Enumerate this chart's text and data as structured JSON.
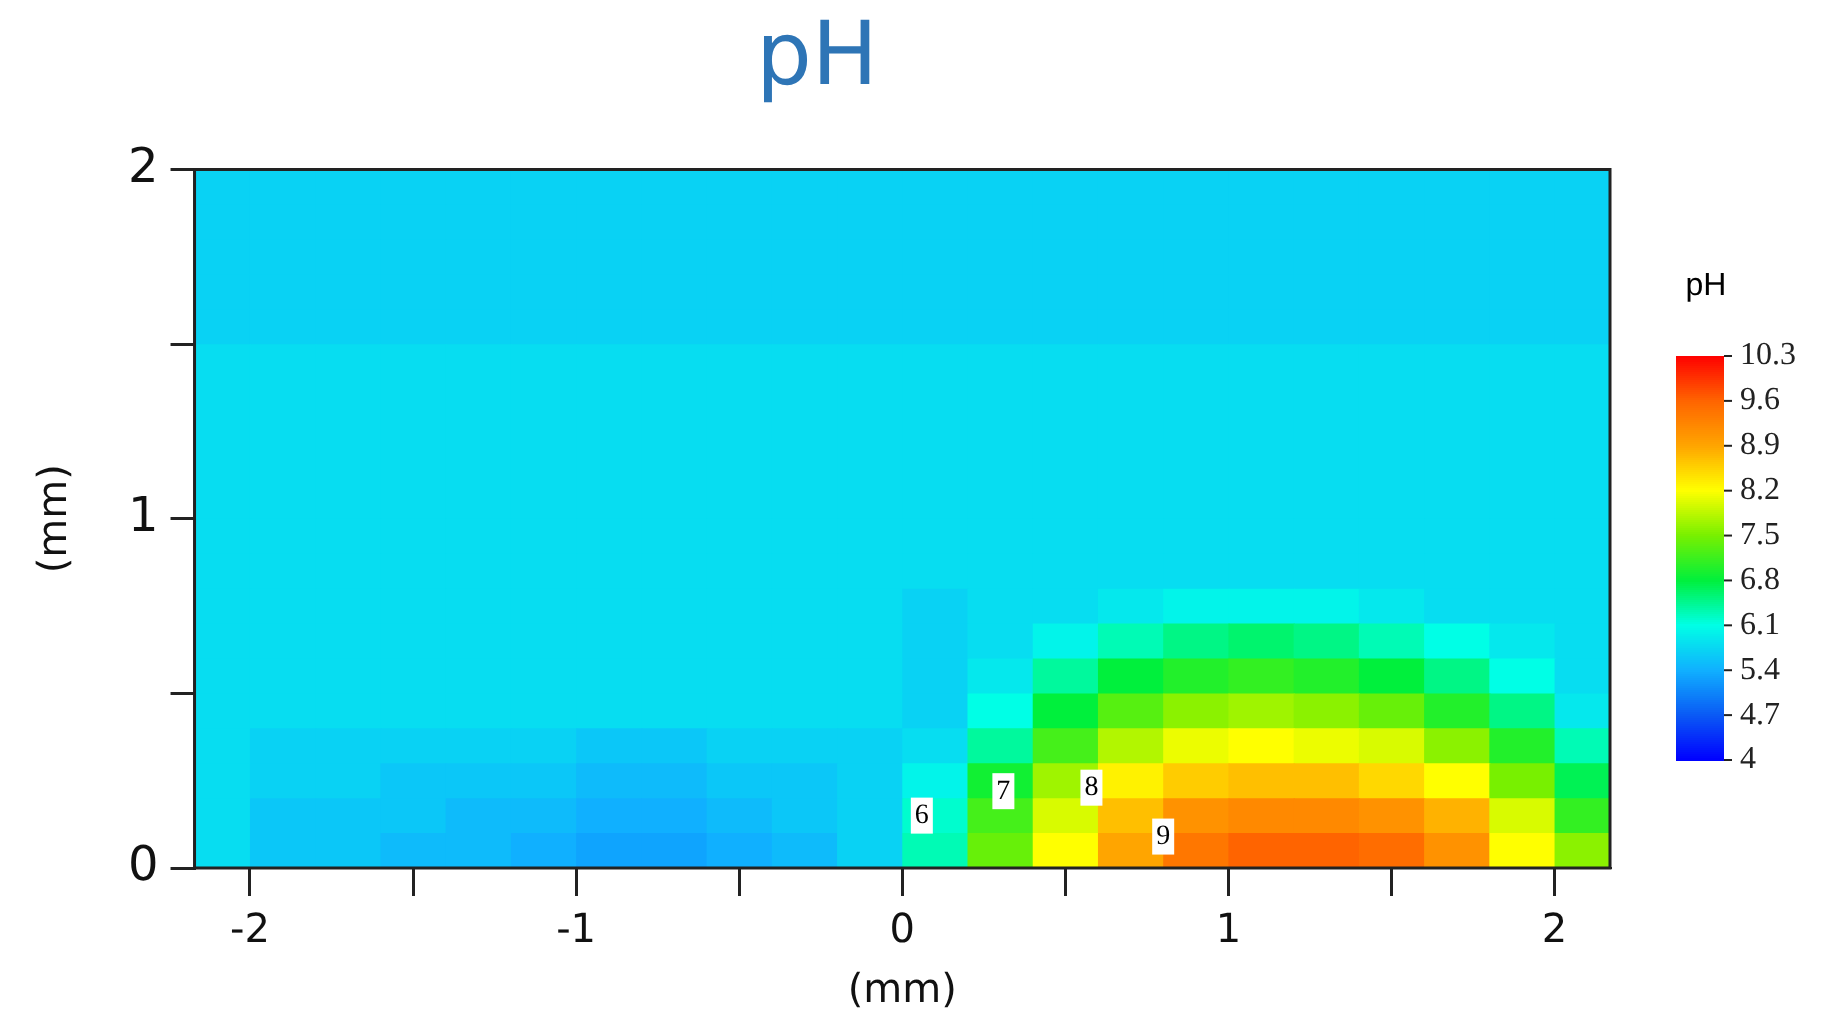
{
  "chart_data": {
    "type": "heatmap",
    "title": "pH",
    "xlabel": "(mm)",
    "ylabel": "(mm)",
    "clabel": "pH",
    "x": [
      -2.1,
      -1.9,
      -1.7,
      -1.5,
      -1.3,
      -1.1,
      -0.9,
      -0.7,
      -0.5,
      -0.3,
      -0.1,
      0.1,
      0.3,
      0.5,
      0.7,
      0.9,
      1.1,
      1.3,
      1.5,
      1.7,
      1.9,
      2.1
    ],
    "y": [
      1.95,
      1.85,
      1.75,
      1.65,
      1.55,
      1.45,
      1.35,
      1.25,
      1.15,
      1.05,
      0.95,
      0.85,
      0.75,
      0.65,
      0.55,
      0.45,
      0.35,
      0.25,
      0.15,
      0.05
    ],
    "cells": [
      [
        5.7,
        5.7,
        5.7,
        5.7,
        5.7,
        5.7,
        5.7,
        5.7,
        5.7,
        5.7,
        5.7,
        5.7,
        5.7,
        5.7,
        5.7,
        5.7,
        5.7,
        5.7,
        5.7,
        5.7,
        5.7,
        5.7
      ],
      [
        5.7,
        5.7,
        5.7,
        5.7,
        5.7,
        5.7,
        5.7,
        5.7,
        5.7,
        5.7,
        5.7,
        5.7,
        5.7,
        5.7,
        5.7,
        5.7,
        5.7,
        5.7,
        5.7,
        5.7,
        5.7,
        5.7
      ],
      [
        5.7,
        5.7,
        5.7,
        5.7,
        5.7,
        5.7,
        5.7,
        5.7,
        5.7,
        5.7,
        5.7,
        5.7,
        5.7,
        5.7,
        5.7,
        5.7,
        5.7,
        5.7,
        5.7,
        5.7,
        5.7,
        5.7
      ],
      [
        5.7,
        5.7,
        5.7,
        5.7,
        5.7,
        5.7,
        5.7,
        5.7,
        5.7,
        5.7,
        5.7,
        5.7,
        5.7,
        5.7,
        5.7,
        5.7,
        5.7,
        5.7,
        5.7,
        5.7,
        5.7,
        5.7
      ],
      [
        5.7,
        5.7,
        5.7,
        5.7,
        5.7,
        5.7,
        5.7,
        5.7,
        5.7,
        5.7,
        5.7,
        5.7,
        5.7,
        5.7,
        5.7,
        5.7,
        5.7,
        5.7,
        5.7,
        5.7,
        5.7,
        5.7
      ],
      [
        5.8,
        5.8,
        5.8,
        5.8,
        5.8,
        5.8,
        5.8,
        5.8,
        5.8,
        5.8,
        5.8,
        5.8,
        5.8,
        5.8,
        5.8,
        5.8,
        5.8,
        5.8,
        5.8,
        5.8,
        5.8,
        5.8
      ],
      [
        5.8,
        5.8,
        5.8,
        5.8,
        5.8,
        5.8,
        5.8,
        5.8,
        5.8,
        5.8,
        5.8,
        5.8,
        5.8,
        5.8,
        5.8,
        5.8,
        5.8,
        5.8,
        5.8,
        5.8,
        5.8,
        5.8
      ],
      [
        5.8,
        5.8,
        5.8,
        5.8,
        5.8,
        5.8,
        5.8,
        5.8,
        5.8,
        5.8,
        5.8,
        5.8,
        5.8,
        5.8,
        5.8,
        5.8,
        5.8,
        5.8,
        5.8,
        5.8,
        5.8,
        5.8
      ],
      [
        5.8,
        5.8,
        5.8,
        5.8,
        5.8,
        5.8,
        5.8,
        5.8,
        5.8,
        5.8,
        5.8,
        5.8,
        5.8,
        5.8,
        5.8,
        5.8,
        5.8,
        5.8,
        5.8,
        5.8,
        5.8,
        5.8
      ],
      [
        5.8,
        5.8,
        5.8,
        5.8,
        5.8,
        5.8,
        5.8,
        5.8,
        5.8,
        5.8,
        5.8,
        5.8,
        5.8,
        5.8,
        5.8,
        5.8,
        5.8,
        5.8,
        5.8,
        5.8,
        5.8,
        5.8
      ],
      [
        5.8,
        5.8,
        5.8,
        5.8,
        5.8,
        5.8,
        5.8,
        5.8,
        5.8,
        5.8,
        5.8,
        5.8,
        5.8,
        5.8,
        5.8,
        5.8,
        5.8,
        5.8,
        5.8,
        5.8,
        5.8,
        5.8
      ],
      [
        5.8,
        5.8,
        5.8,
        5.8,
        5.8,
        5.8,
        5.8,
        5.8,
        5.8,
        5.8,
        5.8,
        5.8,
        5.8,
        5.8,
        5.8,
        5.8,
        5.8,
        5.8,
        5.8,
        5.8,
        5.8,
        5.8
      ],
      [
        5.8,
        5.8,
        5.8,
        5.8,
        5.8,
        5.8,
        5.8,
        5.8,
        5.8,
        5.8,
        5.8,
        5.7,
        5.8,
        5.8,
        5.9,
        6.0,
        6.0,
        6.0,
        5.9,
        5.8,
        5.8,
        5.8
      ],
      [
        5.8,
        5.8,
        5.8,
        5.8,
        5.8,
        5.8,
        5.8,
        5.8,
        5.8,
        5.8,
        5.8,
        5.7,
        5.8,
        6.0,
        6.3,
        6.5,
        6.6,
        6.5,
        6.3,
        6.1,
        5.9,
        5.8
      ],
      [
        5.8,
        5.8,
        5.8,
        5.8,
        5.8,
        5.8,
        5.8,
        5.8,
        5.8,
        5.8,
        5.8,
        5.7,
        5.9,
        6.4,
        6.8,
        7.0,
        7.1,
        7.0,
        6.8,
        6.5,
        6.1,
        5.8
      ],
      [
        5.8,
        5.8,
        5.8,
        5.8,
        5.8,
        5.8,
        5.8,
        5.8,
        5.8,
        5.8,
        5.8,
        5.7,
        6.1,
        6.8,
        7.3,
        7.6,
        7.7,
        7.6,
        7.4,
        7.0,
        6.5,
        5.9
      ],
      [
        5.8,
        5.7,
        5.7,
        5.7,
        5.7,
        5.7,
        5.6,
        5.6,
        5.7,
        5.7,
        5.7,
        5.8,
        6.4,
        7.2,
        7.8,
        8.1,
        8.2,
        8.1,
        8.0,
        7.6,
        7.0,
        6.3
      ],
      [
        5.8,
        5.7,
        5.7,
        5.6,
        5.6,
        5.6,
        5.5,
        5.5,
        5.6,
        5.6,
        5.7,
        6.0,
        6.9,
        7.7,
        8.3,
        8.6,
        8.7,
        8.7,
        8.5,
        8.2,
        7.5,
        6.7
      ],
      [
        5.8,
        5.6,
        5.6,
        5.6,
        5.5,
        5.5,
        5.4,
        5.4,
        5.5,
        5.6,
        5.7,
        6.2,
        7.2,
        8.0,
        8.7,
        9.1,
        9.2,
        9.2,
        9.1,
        8.8,
        8.0,
        7.1
      ],
      [
        5.8,
        5.6,
        5.6,
        5.5,
        5.5,
        5.4,
        5.3,
        5.3,
        5.4,
        5.5,
        5.7,
        6.3,
        7.4,
        8.2,
        8.9,
        9.4,
        9.6,
        9.6,
        9.5,
        9.1,
        8.2,
        7.6
      ]
    ],
    "xlim": [
      -2.17,
      2.17
    ],
    "xticks": [
      -2,
      {
        "value": -1.5,
        "label": null
      },
      -1,
      {
        "value": -0.5,
        "label": null
      },
      0,
      {
        "value": 0.5,
        "label": null
      },
      1,
      {
        "value": 1.5,
        "label": null
      },
      2
    ],
    "ylim": [
      0,
      2
    ],
    "yticks": [
      0,
      {
        "value": 0.5,
        "label": null
      },
      1,
      {
        "value": 1.5,
        "label": null
      },
      2
    ],
    "clim": [
      4,
      10.3
    ],
    "cticks": [
      4,
      4.7,
      5.4,
      6.1,
      6.8,
      7.5,
      8.2,
      8.9,
      9.6,
      10.3
    ],
    "colors": [
      "#0000ff",
      "#0a5af5",
      "#10b0ff",
      "#00ffe6",
      "#00f03c",
      "#78f000",
      "#ffff00",
      "#ffa500",
      "#ff6400",
      "#ff0000"
    ],
    "annotations": [
      "6",
      "7",
      "8",
      "9"
    ]
  }
}
